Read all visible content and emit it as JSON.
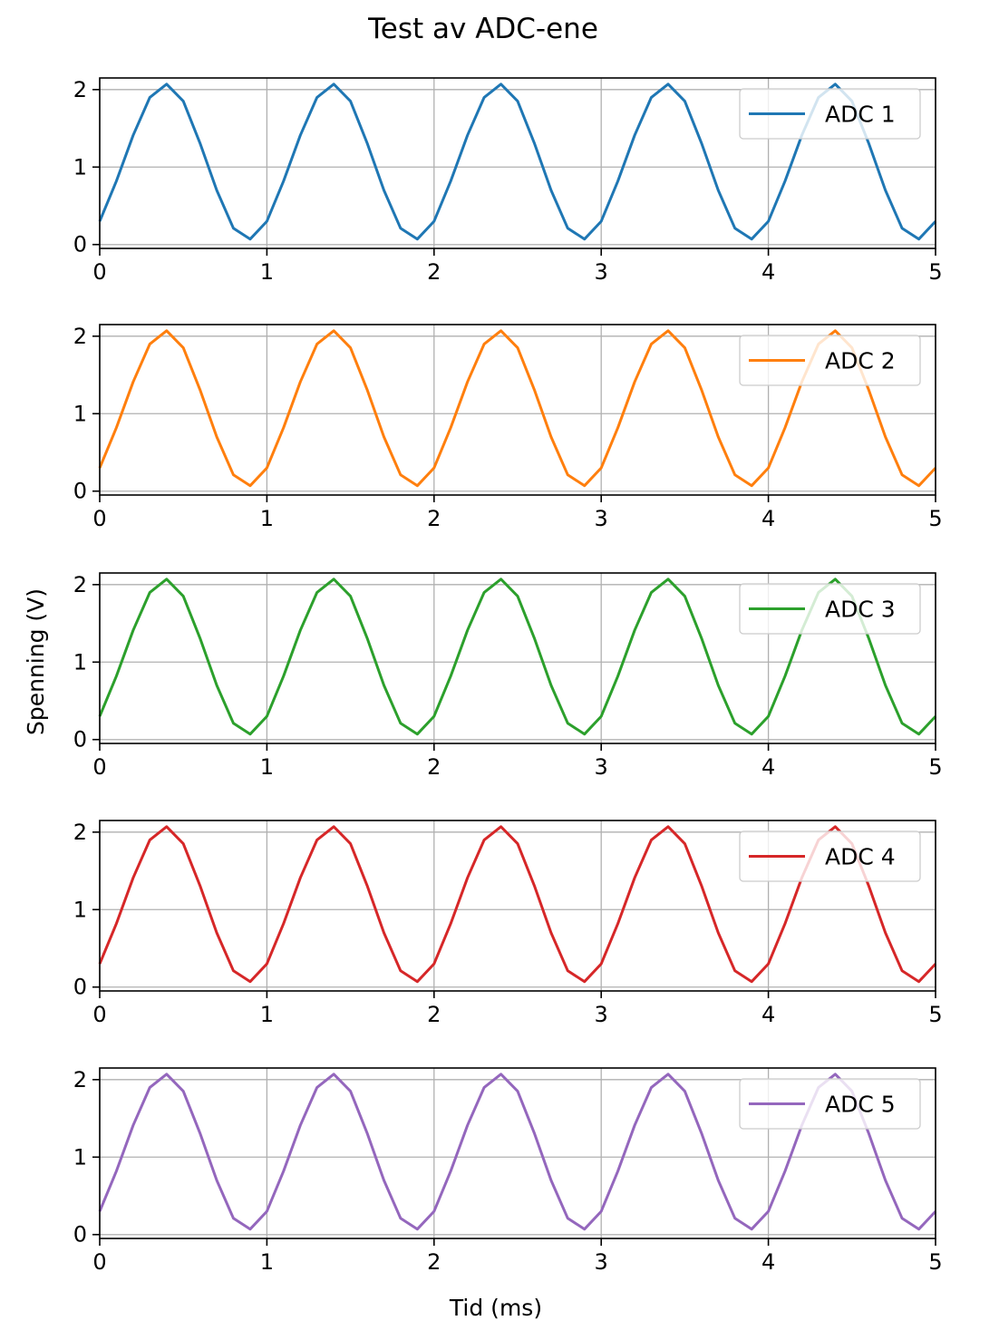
{
  "figure": {
    "title": "Test av ADC-ene",
    "xlabel": "Tid (ms)",
    "ylabel": "Spenning (V)"
  },
  "chart_data": [
    {
      "type": "line",
      "xlim": [
        0,
        5
      ],
      "ylim": [
        -0.05,
        2.15
      ],
      "xticks": [
        "0",
        "1",
        "2",
        "3",
        "4",
        "5"
      ],
      "yticks": [
        "0",
        "1",
        "2"
      ],
      "grid": true,
      "legend_position": "top-right",
      "series": [
        {
          "name": "ADC 1",
          "color": "#1f77b4",
          "x": [
            0,
            0.1,
            0.2,
            0.3,
            0.4,
            0.5,
            0.6,
            0.7,
            0.8,
            0.9,
            1.0,
            1.1,
            1.2,
            1.3,
            1.4,
            1.5,
            1.6,
            1.7,
            1.8,
            1.9,
            2.0,
            2.1,
            2.2,
            2.3,
            2.4,
            2.5,
            2.6,
            2.7,
            2.8,
            2.9,
            3.0,
            3.1,
            3.2,
            3.3,
            3.4,
            3.5,
            3.6,
            3.7,
            3.8,
            3.9,
            4.0,
            4.1,
            4.2,
            4.3,
            4.4,
            4.5,
            4.6,
            4.7,
            4.8,
            4.9,
            5.0
          ],
          "y": [
            0.3,
            0.82,
            1.41,
            1.9,
            2.07,
            1.85,
            1.31,
            0.7,
            0.21,
            0.07,
            0.3,
            0.82,
            1.41,
            1.9,
            2.07,
            1.85,
            1.31,
            0.7,
            0.21,
            0.07,
            0.3,
            0.82,
            1.41,
            1.9,
            2.07,
            1.85,
            1.31,
            0.7,
            0.21,
            0.07,
            0.3,
            0.82,
            1.41,
            1.9,
            2.07,
            1.85,
            1.31,
            0.7,
            0.21,
            0.07,
            0.3,
            0.82,
            1.41,
            1.9,
            2.07,
            1.85,
            1.31,
            0.7,
            0.21,
            0.07,
            0.3
          ]
        }
      ]
    },
    {
      "type": "line",
      "xlim": [
        0,
        5
      ],
      "ylim": [
        -0.05,
        2.15
      ],
      "xticks": [
        "0",
        "1",
        "2",
        "3",
        "4",
        "5"
      ],
      "yticks": [
        "0",
        "1",
        "2"
      ],
      "grid": true,
      "legend_position": "top-right",
      "series": [
        {
          "name": "ADC 2",
          "color": "#ff7f0e",
          "x": [
            0,
            0.1,
            0.2,
            0.3,
            0.4,
            0.5,
            0.6,
            0.7,
            0.8,
            0.9,
            1.0,
            1.1,
            1.2,
            1.3,
            1.4,
            1.5,
            1.6,
            1.7,
            1.8,
            1.9,
            2.0,
            2.1,
            2.2,
            2.3,
            2.4,
            2.5,
            2.6,
            2.7,
            2.8,
            2.9,
            3.0,
            3.1,
            3.2,
            3.3,
            3.4,
            3.5,
            3.6,
            3.7,
            3.8,
            3.9,
            4.0,
            4.1,
            4.2,
            4.3,
            4.4,
            4.5,
            4.6,
            4.7,
            4.8,
            4.9,
            5.0
          ],
          "y": [
            0.3,
            0.82,
            1.41,
            1.9,
            2.07,
            1.85,
            1.31,
            0.7,
            0.21,
            0.07,
            0.3,
            0.82,
            1.41,
            1.9,
            2.07,
            1.85,
            1.31,
            0.7,
            0.21,
            0.07,
            0.3,
            0.82,
            1.41,
            1.9,
            2.07,
            1.85,
            1.31,
            0.7,
            0.21,
            0.07,
            0.3,
            0.82,
            1.41,
            1.9,
            2.07,
            1.85,
            1.31,
            0.7,
            0.21,
            0.07,
            0.3,
            0.82,
            1.41,
            1.9,
            2.07,
            1.85,
            1.31,
            0.7,
            0.21,
            0.07,
            0.3
          ]
        }
      ]
    },
    {
      "type": "line",
      "xlim": [
        0,
        5
      ],
      "ylim": [
        -0.05,
        2.15
      ],
      "xticks": [
        "0",
        "1",
        "2",
        "3",
        "4",
        "5"
      ],
      "yticks": [
        "0",
        "1",
        "2"
      ],
      "grid": true,
      "legend_position": "top-right",
      "series": [
        {
          "name": "ADC 3",
          "color": "#2ca02c",
          "x": [
            0,
            0.1,
            0.2,
            0.3,
            0.4,
            0.5,
            0.6,
            0.7,
            0.8,
            0.9,
            1.0,
            1.1,
            1.2,
            1.3,
            1.4,
            1.5,
            1.6,
            1.7,
            1.8,
            1.9,
            2.0,
            2.1,
            2.2,
            2.3,
            2.4,
            2.5,
            2.6,
            2.7,
            2.8,
            2.9,
            3.0,
            3.1,
            3.2,
            3.3,
            3.4,
            3.5,
            3.6,
            3.7,
            3.8,
            3.9,
            4.0,
            4.1,
            4.2,
            4.3,
            4.4,
            4.5,
            4.6,
            4.7,
            4.8,
            4.9,
            5.0
          ],
          "y": [
            0.3,
            0.82,
            1.41,
            1.9,
            2.07,
            1.85,
            1.31,
            0.7,
            0.21,
            0.07,
            0.3,
            0.82,
            1.41,
            1.9,
            2.07,
            1.85,
            1.31,
            0.7,
            0.21,
            0.07,
            0.3,
            0.82,
            1.41,
            1.9,
            2.07,
            1.85,
            1.31,
            0.7,
            0.21,
            0.07,
            0.3,
            0.82,
            1.41,
            1.9,
            2.07,
            1.85,
            1.31,
            0.7,
            0.21,
            0.07,
            0.3,
            0.82,
            1.41,
            1.9,
            2.07,
            1.85,
            1.31,
            0.7,
            0.21,
            0.07,
            0.3
          ]
        }
      ]
    },
    {
      "type": "line",
      "xlim": [
        0,
        5
      ],
      "ylim": [
        -0.05,
        2.15
      ],
      "xticks": [
        "0",
        "1",
        "2",
        "3",
        "4",
        "5"
      ],
      "yticks": [
        "0",
        "1",
        "2"
      ],
      "grid": true,
      "legend_position": "top-right",
      "series": [
        {
          "name": "ADC 4",
          "color": "#d62728",
          "x": [
            0,
            0.1,
            0.2,
            0.3,
            0.4,
            0.5,
            0.6,
            0.7,
            0.8,
            0.9,
            1.0,
            1.1,
            1.2,
            1.3,
            1.4,
            1.5,
            1.6,
            1.7,
            1.8,
            1.9,
            2.0,
            2.1,
            2.2,
            2.3,
            2.4,
            2.5,
            2.6,
            2.7,
            2.8,
            2.9,
            3.0,
            3.1,
            3.2,
            3.3,
            3.4,
            3.5,
            3.6,
            3.7,
            3.8,
            3.9,
            4.0,
            4.1,
            4.2,
            4.3,
            4.4,
            4.5,
            4.6,
            4.7,
            4.8,
            4.9,
            5.0
          ],
          "y": [
            0.3,
            0.82,
            1.41,
            1.9,
            2.07,
            1.85,
            1.31,
            0.7,
            0.21,
            0.07,
            0.3,
            0.82,
            1.41,
            1.9,
            2.07,
            1.85,
            1.31,
            0.7,
            0.21,
            0.07,
            0.3,
            0.82,
            1.41,
            1.9,
            2.07,
            1.85,
            1.31,
            0.7,
            0.21,
            0.07,
            0.3,
            0.82,
            1.41,
            1.9,
            2.07,
            1.85,
            1.31,
            0.7,
            0.21,
            0.07,
            0.3,
            0.82,
            1.41,
            1.9,
            2.07,
            1.85,
            1.31,
            0.7,
            0.21,
            0.07,
            0.3
          ]
        }
      ]
    },
    {
      "type": "line",
      "xlim": [
        0,
        5
      ],
      "ylim": [
        -0.05,
        2.15
      ],
      "xticks": [
        "0",
        "1",
        "2",
        "3",
        "4",
        "5"
      ],
      "yticks": [
        "0",
        "1",
        "2"
      ],
      "grid": true,
      "legend_position": "top-right",
      "series": [
        {
          "name": "ADC 5",
          "color": "#9467bd",
          "x": [
            0,
            0.1,
            0.2,
            0.3,
            0.4,
            0.5,
            0.6,
            0.7,
            0.8,
            0.9,
            1.0,
            1.1,
            1.2,
            1.3,
            1.4,
            1.5,
            1.6,
            1.7,
            1.8,
            1.9,
            2.0,
            2.1,
            2.2,
            2.3,
            2.4,
            2.5,
            2.6,
            2.7,
            2.8,
            2.9,
            3.0,
            3.1,
            3.2,
            3.3,
            3.4,
            3.5,
            3.6,
            3.7,
            3.8,
            3.9,
            4.0,
            4.1,
            4.2,
            4.3,
            4.4,
            4.5,
            4.6,
            4.7,
            4.8,
            4.9,
            5.0
          ],
          "y": [
            0.3,
            0.82,
            1.41,
            1.9,
            2.07,
            1.85,
            1.31,
            0.7,
            0.21,
            0.07,
            0.3,
            0.82,
            1.41,
            1.9,
            2.07,
            1.85,
            1.31,
            0.7,
            0.21,
            0.07,
            0.3,
            0.82,
            1.41,
            1.9,
            2.07,
            1.85,
            1.31,
            0.7,
            0.21,
            0.07,
            0.3,
            0.82,
            1.41,
            1.9,
            2.07,
            1.85,
            1.31,
            0.7,
            0.21,
            0.07,
            0.3,
            0.82,
            1.41,
            1.9,
            2.07,
            1.85,
            1.31,
            0.7,
            0.21,
            0.07,
            0.3
          ]
        }
      ]
    }
  ]
}
